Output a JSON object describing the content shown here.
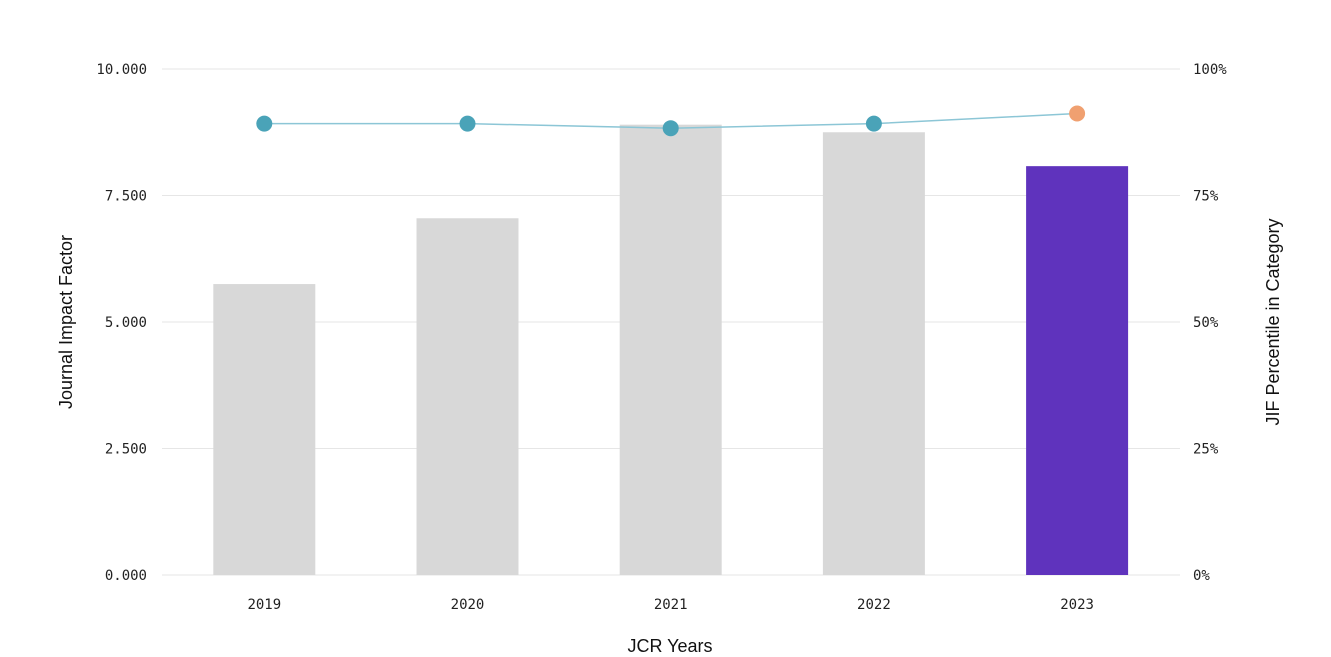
{
  "chart_data": {
    "type": "bar",
    "categories": [
      "2019",
      "2020",
      "2021",
      "2022",
      "2023"
    ],
    "series": [
      {
        "type": "bar",
        "axis": "left",
        "values": [
          5.75,
          7.05,
          8.9,
          8.75,
          8.08
        ],
        "colors": [
          "#d8d8d8",
          "#d8d8d8",
          "#d8d8d8",
          "#d8d8d8",
          "#5f33bd"
        ]
      },
      {
        "type": "line",
        "axis": "right",
        "values": [
          89.2,
          89.2,
          88.3,
          89.2,
          91.2
        ],
        "line_color": "#8cc6d6",
        "marker_colors": [
          "#4aa3b8",
          "#4aa3b8",
          "#4aa3b8",
          "#4aa3b8",
          "#f0a070"
        ]
      }
    ],
    "xlabel": "JCR Years",
    "ylabel": "Journal Impact Factor",
    "ylabel_right": "JIF Percentile in Category",
    "ylim": [
      0,
      10
    ],
    "ylim_right": [
      0,
      100
    ],
    "yticks": [
      "0.000",
      "2.500",
      "5.000",
      "7.500",
      "10.000"
    ],
    "yticks_right": [
      "0%",
      "25%",
      "50%",
      "75%",
      "100%"
    ],
    "grid": true
  }
}
